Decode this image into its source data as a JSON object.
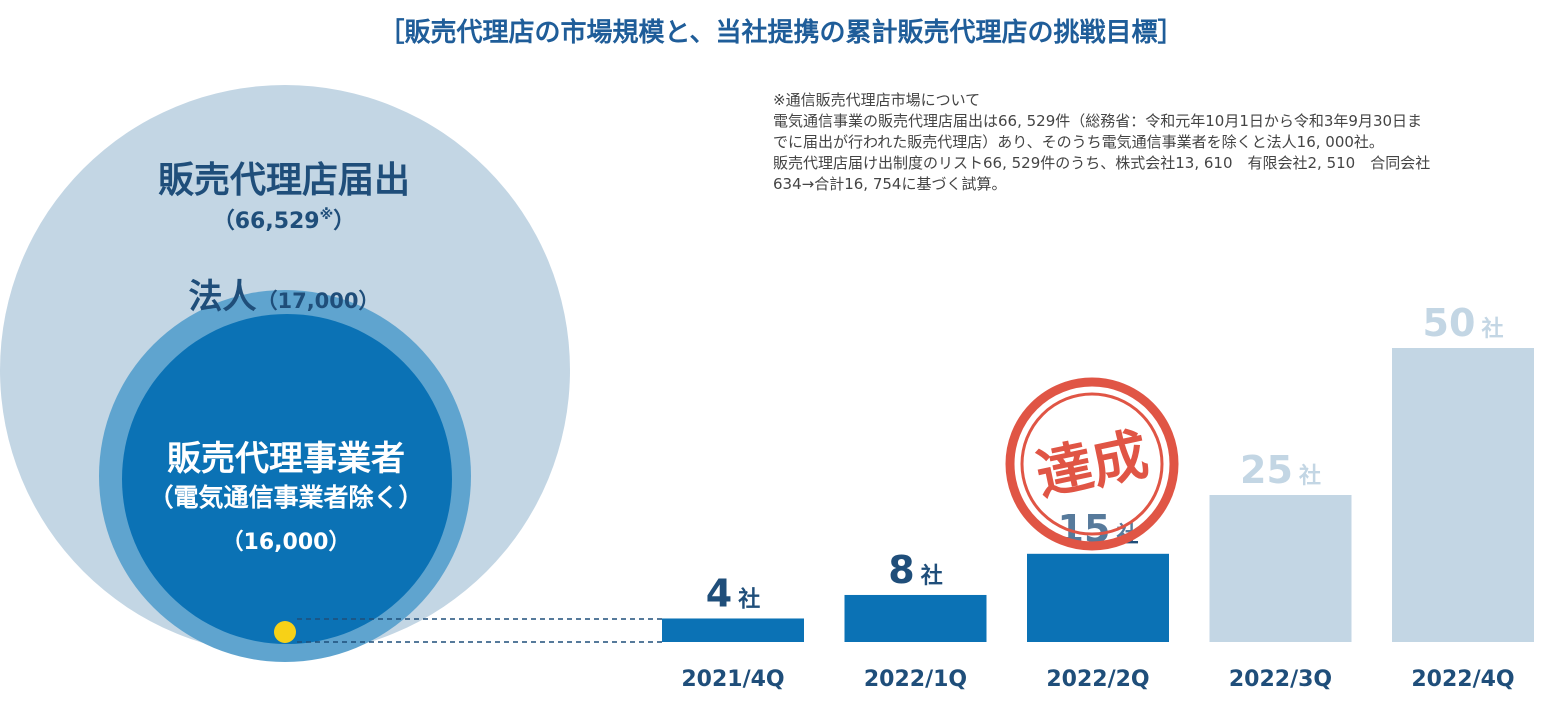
{
  "title": "［販売代理店の市場規模と、当社提携の累計販売代理店の挑戦目標］",
  "note": {
    "lines": [
      "※通信販売代理店市場について",
      "電気通信事業の販売代理店届出は66, 529件（総務省：令和元年10月1日から令和3年9月30日ま",
      "でに届出が行われた販売代理店）あり、そのうち電気通信事業者を除くと法人16, 000社。",
      "販売代理店届け出制度のリスト66, 529件のうち、株式会社13, 610　有限会社2, 510　合同会社",
      "634→合計16, 754に基づく試算。"
    ]
  },
  "market": {
    "outer": {
      "label": "販売代理店届出",
      "value": "（66,529",
      "mark": "※",
      "close": "）",
      "color": "#c3d6e4"
    },
    "middle": {
      "label": "法人",
      "value": "（17,000）",
      "color": "#5fa4cf"
    },
    "inner": {
      "label": "販売代理事業者",
      "sub": "（電気通信事業者除く）",
      "value": "（16,000）",
      "color": "#0b72b5"
    },
    "marker_color": "#f7d117"
  },
  "chart_data": {
    "type": "bar",
    "categories": [
      "2021/4Q",
      "2022/1Q",
      "2022/2Q",
      "2022/3Q",
      "2022/4Q"
    ],
    "values": [
      4,
      8,
      15,
      25,
      50
    ],
    "unit": "社",
    "status": [
      "actual",
      "actual",
      "actual",
      "target",
      "target"
    ],
    "colors": {
      "actual": "#0b72b5",
      "target": "#c3d6e4",
      "actual_label": "#1f4e7a",
      "target_label": "#c3d6e4"
    },
    "ylim": [
      0,
      50
    ],
    "achieved": {
      "index": 2,
      "label": "達成",
      "color": "#e05545"
    }
  }
}
